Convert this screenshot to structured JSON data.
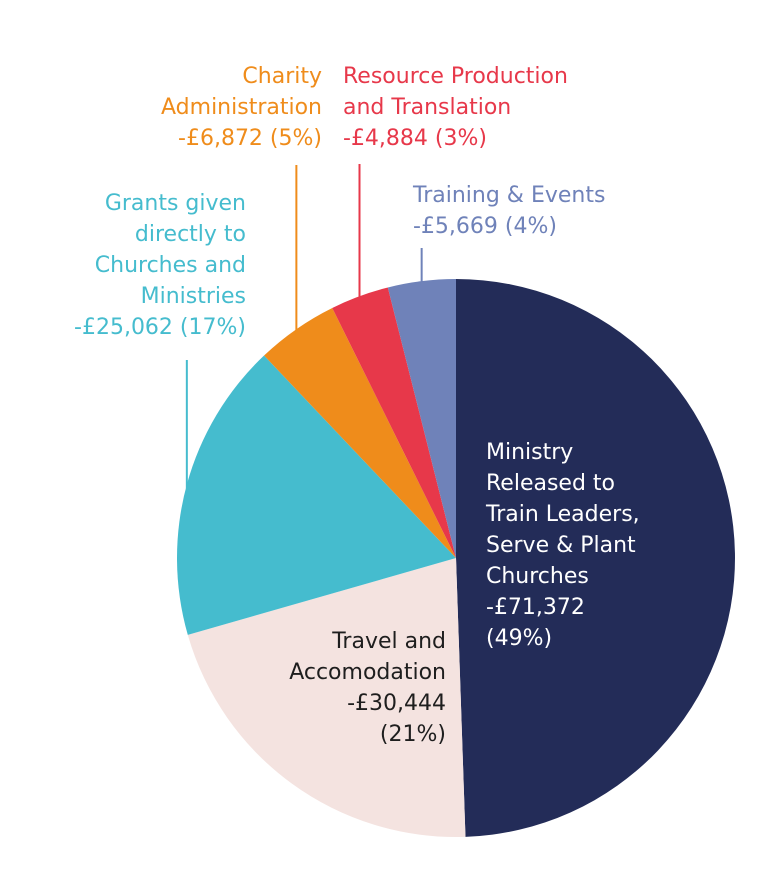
{
  "chart_data": {
    "type": "pie",
    "title": "",
    "slices": [
      {
        "category": "Ministry Released to Train Leaders, Serve & Plant Churches",
        "value": 71372,
        "percent": 49,
        "color": "#232c58",
        "label_lines": [
          "Ministry",
          "Released to",
          "Train Leaders,",
          "Serve & Plant",
          "Churches",
          "-£71,372",
          "(49%)"
        ],
        "label_color": "#ffffff"
      },
      {
        "category": "Travel and Accomodation",
        "value": 30444,
        "percent": 21,
        "color": "#f4e3e0",
        "label_lines": [
          "Travel and",
          "Accomodation",
          "-£30,444",
          "(21%)"
        ],
        "label_color": "#1e1e1e"
      },
      {
        "category": "Grants given directly to Churches and Ministries",
        "value": 25062,
        "percent": 17,
        "color": "#45bcce",
        "label_lines": [
          "Grants given",
          "directly to",
          "Churches and",
          "Ministries",
          "-£25,062 (17%)"
        ],
        "label_color": "#45bcce"
      },
      {
        "category": "Charity Administration",
        "value": 6872,
        "percent": 5,
        "color": "#ef8c1b",
        "label_lines": [
          "Charity",
          "Administration",
          "-£6,872 (5%)"
        ],
        "label_color": "#ef8c1b"
      },
      {
        "category": "Resource Production and Translation",
        "value": 4884,
        "percent": 3,
        "color": "#e7384a",
        "label_lines": [
          "Resource Production",
          "and Translation",
          "-£4,884 (3%)"
        ],
        "label_color": "#e7384a"
      },
      {
        "category": "Training & Events",
        "value": 5669,
        "percent": 4,
        "color": "#6f82b9",
        "label_lines": [
          "Training & Events",
          "-£5,669 (4%)"
        ],
        "label_color": "#6f82b9"
      }
    ]
  }
}
